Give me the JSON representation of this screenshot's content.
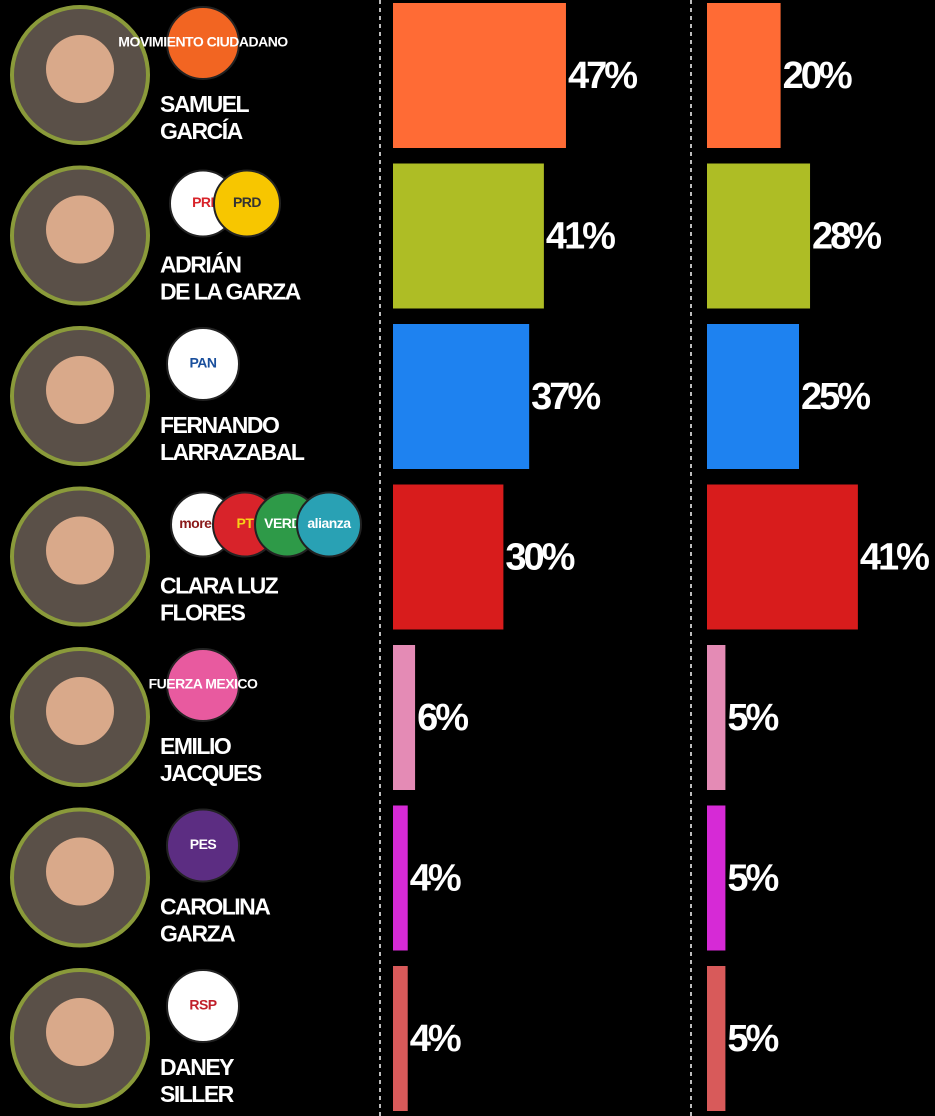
{
  "chart_data": {
    "type": "bar",
    "orientation": "horizontal",
    "categories": [
      [
        "SAMUEL",
        "GARCÍA"
      ],
      [
        "ADRIÁN",
        "DE LA GARZA"
      ],
      [
        "FERNANDO",
        "LARRAZABAL"
      ],
      [
        "CLARA LUZ",
        "FLORES"
      ],
      [
        "EMILIO",
        "JACQUES"
      ],
      [
        "CAROLINA",
        "GARZA"
      ],
      [
        "DANEY",
        "SILLER"
      ]
    ],
    "colors": [
      "#ff6b35",
      "#aebd25",
      "#1e82f0",
      "#d81c1c",
      "#e48bb5",
      "#d62ad6",
      "#d85a5a"
    ],
    "parties": [
      [
        {
          "name": "MOVIMIENTO CIUDADANO",
          "color": "#f26522",
          "text_color": "#ffffff"
        }
      ],
      [
        {
          "name": "PRI",
          "color": "#ffffff",
          "text_color": "#d8232a"
        },
        {
          "name": "PRD",
          "color": "#f7c600",
          "text_color": "#333333"
        }
      ],
      [
        {
          "name": "PAN",
          "color": "#ffffff",
          "text_color": "#1a4f9c"
        }
      ],
      [
        {
          "name": "morena",
          "color": "#ffffff",
          "text_color": "#8b1a1a"
        },
        {
          "name": "PT",
          "color": "#d8232a",
          "text_color": "#f7d117"
        },
        {
          "name": "VERDE",
          "color": "#2e9a48",
          "text_color": "#ffffff"
        },
        {
          "name": "alianza",
          "color": "#29a1b4",
          "text_color": "#ffffff"
        }
      ],
      [
        {
          "name": "FUERZA MEXICO",
          "color": "#e85a9f",
          "text_color": "#ffffff"
        }
      ],
      [
        {
          "name": "PES",
          "color": "#5c2d82",
          "text_color": "#ffffff"
        }
      ],
      [
        {
          "name": "RSP",
          "color": "#ffffff",
          "text_color": "#c0202a"
        }
      ]
    ],
    "series": [
      {
        "values": [
          47,
          41,
          37,
          30,
          6,
          4,
          4
        ],
        "value_labels": [
          "47%",
          "41%",
          "37%",
          "30%",
          "6%",
          "4%",
          "4%"
        ]
      },
      {
        "values": [
          20,
          28,
          25,
          41,
          5,
          5,
          5
        ],
        "value_labels": [
          "20%",
          "28%",
          "25%",
          "41%",
          "5%",
          "5%",
          "5%"
        ]
      }
    ]
  }
}
